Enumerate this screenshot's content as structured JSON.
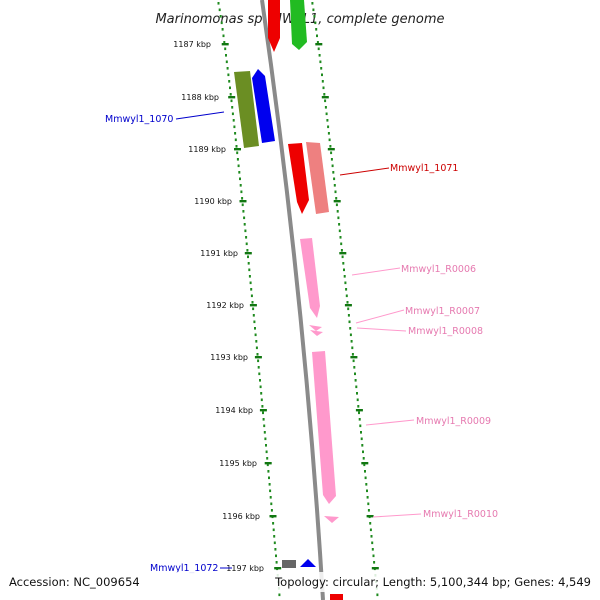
{
  "title": "Marinomonas sp. MWYL1, complete genome",
  "footer": {
    "accession": "Accession: NC_009654",
    "topology": "Topology: circular; Length: 5,100,344 bp; Genes: 4,549"
  },
  "ticks": [
    {
      "kb": 1187,
      "label": "1187 kbp"
    },
    {
      "kb": 1188,
      "label": "1188 kbp"
    },
    {
      "kb": 1189,
      "label": "1189 kbp"
    },
    {
      "kb": 1190,
      "label": "1190 kbp"
    },
    {
      "kb": 1191,
      "label": "1191 kbp"
    },
    {
      "kb": 1192,
      "label": "1192 kbp"
    },
    {
      "kb": 1193,
      "label": "1193 kbp"
    },
    {
      "kb": 1194,
      "label": "1194 kbp"
    },
    {
      "kb": 1195,
      "label": "1195 kbp"
    },
    {
      "kb": 1196,
      "label": "1196 kbp"
    },
    {
      "kb": 1197,
      "label": "1197 kbp"
    }
  ],
  "gene_labels": [
    {
      "name": "Mmwyl1_1070",
      "color": "#0000cc"
    },
    {
      "name": "Mmwyl1_1071",
      "color": "#cc0000"
    },
    {
      "name": "Mmwyl1_R0006",
      "color": "#e67ab0"
    },
    {
      "name": "Mmwyl1_R0007",
      "color": "#e67ab0"
    },
    {
      "name": "Mmwyl1_R0008",
      "color": "#e67ab0"
    },
    {
      "name": "Mmwyl1_R0009",
      "color": "#e67ab0"
    },
    {
      "name": "Mmwyl1_R0010",
      "color": "#e67ab0"
    },
    {
      "name": "Mmwyl1_1072",
      "color": "#0000cc"
    }
  ],
  "colors": {
    "backbone": "#8a8a8a",
    "dots": "#1f8a1f",
    "pink": "#ff99cc",
    "red": "#ee0000",
    "salmon": "#ee8080",
    "blue": "#0000ee",
    "olive": "#6b8e23",
    "green": "#22bb22",
    "gray": "#666666"
  }
}
